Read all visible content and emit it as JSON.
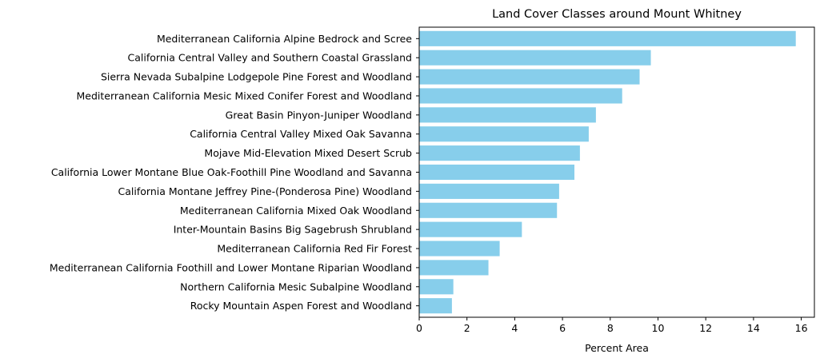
{
  "chart_data": {
    "type": "bar",
    "orientation": "horizontal",
    "title": "Land Cover Classes around Mount Whitney",
    "xlabel": "Percent Area",
    "ylabel": "",
    "xlim": [
      0,
      16.55
    ],
    "xticks": [
      0,
      2,
      4,
      6,
      8,
      10,
      12,
      14,
      16
    ],
    "grid": false,
    "bar_color": "#87ceeb",
    "categories": [
      "Mediterranean California Alpine Bedrock and Scree",
      "California Central Valley and Southern Coastal Grassland",
      "Sierra Nevada Subalpine Lodgepole Pine Forest and Woodland",
      "Mediterranean California Mesic Mixed Conifer Forest and Woodland",
      "Great Basin Pinyon-Juniper Woodland",
      "California Central Valley Mixed Oak Savanna",
      "Mojave Mid-Elevation Mixed Desert Scrub",
      "California Lower Montane Blue Oak-Foothill Pine Woodland and Savanna",
      "California Montane Jeffrey Pine-(Ponderosa Pine) Woodland",
      "Mediterranean California Mixed Oak Woodland",
      "Inter-Mountain Basins Big Sagebrush Shrubland",
      "Mediterranean California Red Fir Forest",
      "Mediterranean California Foothill and Lower Montane Riparian Woodland",
      "Northern California Mesic Subalpine Woodland",
      "Rocky Mountain Aspen Forest and Woodland"
    ],
    "values": [
      15.77,
      9.7,
      9.23,
      8.5,
      7.4,
      7.1,
      6.73,
      6.5,
      5.86,
      5.77,
      4.3,
      3.37,
      2.9,
      1.43,
      1.37
    ]
  }
}
